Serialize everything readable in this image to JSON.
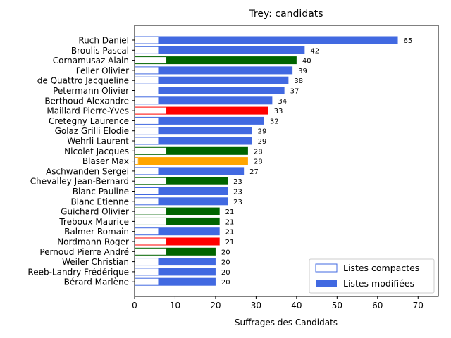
{
  "chart_data": {
    "type": "bar",
    "orientation": "horizontal",
    "title": "Trey: candidats",
    "xlabel": "Suffrages des Candidats",
    "ylabel": "",
    "xlim": [
      0,
      75
    ],
    "xticks": [
      0,
      10,
      20,
      30,
      40,
      50,
      60,
      70
    ],
    "legend_placement": "bottom-right",
    "colors": {
      "blue": "#4169e1",
      "green": "#006400",
      "red": "#ff0000",
      "orange": "#ffa500"
    },
    "legend": [
      {
        "label": "Listes compactes",
        "style": "outline",
        "color": "#4169e1"
      },
      {
        "label": "Listes modifiées",
        "style": "filled",
        "color": "#4169e1"
      }
    ],
    "categories": [
      "Ruch Daniel",
      "Broulis Pascal",
      "Cornamusaz Alain",
      "Feller Olivier",
      "de Quattro Jacqueline",
      "Petermann Olivier",
      "Berthoud Alexandre",
      "Maillard Pierre-Yves",
      "Cretegny Laurence",
      "Golaz Grilli Elodie",
      "Wehrli Laurent",
      "Nicolet Jacques",
      "Blaser Max",
      "Aschwanden Sergei",
      "Chevalley Jean-Bernard",
      "Blanc Pauline",
      "Blanc Etienne",
      "Guichard Olivier",
      "Treboux Maurice",
      "Balmer Romain",
      "Nordmann Roger",
      "Pernoud Pierre André",
      "Weiler Christian",
      "Reeb-Landry Frédérique",
      "Bérard Marlène"
    ],
    "series": [
      {
        "name": "Listes compactes",
        "values": [
          6,
          6,
          8,
          6,
          6,
          6,
          6,
          8,
          6,
          6,
          6,
          8,
          1,
          6,
          8,
          6,
          6,
          8,
          8,
          6,
          8,
          8,
          6,
          6,
          6
        ]
      },
      {
        "name": "Listes modifiées",
        "values": [
          59,
          36,
          32,
          33,
          32,
          31,
          28,
          25,
          26,
          23,
          23,
          20,
          27,
          21,
          15,
          17,
          17,
          13,
          13,
          15,
          13,
          12,
          14,
          14,
          14
        ]
      }
    ],
    "totals": [
      65,
      42,
      40,
      39,
      38,
      37,
      34,
      33,
      32,
      29,
      29,
      28,
      28,
      27,
      23,
      23,
      23,
      21,
      21,
      21,
      21,
      20,
      20,
      20,
      20
    ],
    "bar_colors": [
      "blue",
      "blue",
      "green",
      "blue",
      "blue",
      "blue",
      "blue",
      "red",
      "blue",
      "blue",
      "blue",
      "green",
      "orange",
      "blue",
      "green",
      "blue",
      "blue",
      "green",
      "green",
      "blue",
      "red",
      "green",
      "blue",
      "blue",
      "blue"
    ]
  }
}
